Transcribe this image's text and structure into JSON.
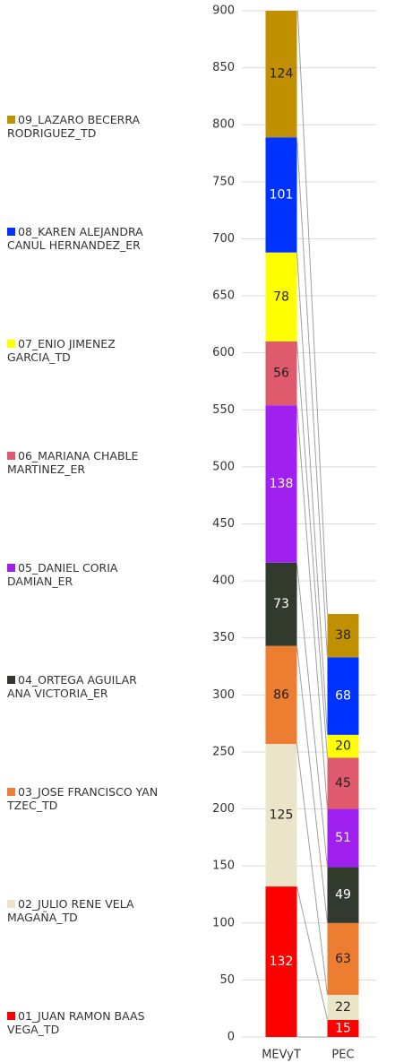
{
  "chart_data": {
    "type": "stacked_bar",
    "categories": [
      "MEVyT",
      "PEC"
    ],
    "series": [
      {
        "name": "01_JUAN RAMON BAAS VEGA_TD",
        "color": "#ff0000",
        "values": [
          132,
          15
        ]
      },
      {
        "name": "02_JULIO RENE VELA MAGAÑA_TD",
        "color": "#ebe4c8",
        "values": [
          125,
          22
        ]
      },
      {
        "name": "03_JOSE FRANCISCO YAN TZEC_TD",
        "color": "#ed7d31",
        "values": [
          86,
          63
        ]
      },
      {
        "name": "04_ORTEGA AGUILAR ANA VICTORIA_ER",
        "color": "#323a2e",
        "values": [
          73,
          49
        ]
      },
      {
        "name": "05_DANIEL CORIA DAMIAN_ER",
        "color": "#a020f0",
        "values": [
          138,
          51
        ]
      },
      {
        "name": "06_MARIANA CHABLE MARTINEZ_ER",
        "color": "#df5a6c",
        "values": [
          56,
          45
        ]
      },
      {
        "name": "07_ENIO JIMENEZ GARCIA_TD",
        "color": "#ffff00",
        "values": [
          78,
          20
        ]
      },
      {
        "name": "08_KAREN ALEJANDRA CANUL HERNANDEZ_ER",
        "color": "#0033ff",
        "values": [
          101,
          68
        ]
      },
      {
        "name": "09_LAZARO BECERRA RODRIGUEZ_TD",
        "color": "#c09000",
        "values": [
          124,
          38
        ]
      }
    ],
    "ylim": [
      0,
      900
    ],
    "yticks": [
      0,
      50,
      100,
      150,
      200,
      250,
      300,
      350,
      400,
      450,
      500,
      550,
      600,
      650,
      700,
      750,
      800,
      850,
      900
    ],
    "grid": true,
    "legend": "left"
  }
}
